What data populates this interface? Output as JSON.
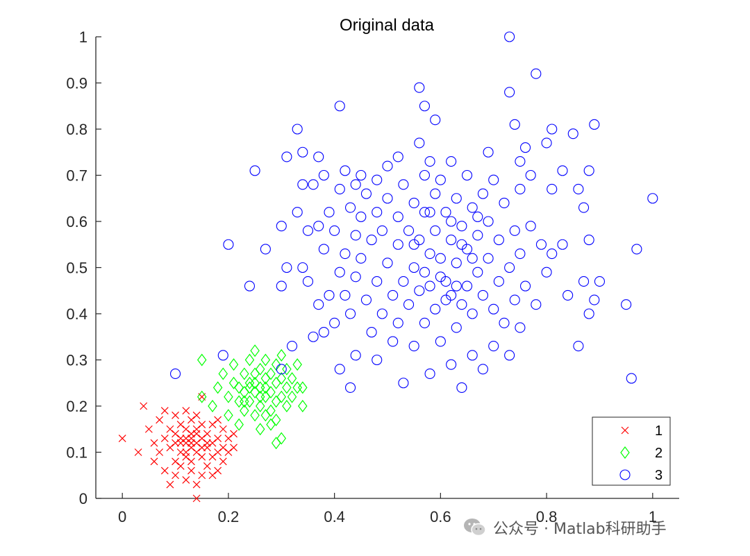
{
  "chart_data": {
    "type": "scatter",
    "title": "Original data",
    "xlim": [
      -0.05,
      1.05
    ],
    "ylim": [
      0,
      1
    ],
    "xticks": [
      0,
      0.2,
      0.4,
      0.6,
      0.8,
      1
    ],
    "xtick_labels": [
      "0",
      "0.2",
      "0.4",
      "0.6",
      "0.8",
      "1"
    ],
    "yticks": [
      0,
      0.1,
      0.2,
      0.3,
      0.4,
      0.5,
      0.6,
      0.7,
      0.8,
      0.9,
      1
    ],
    "ytick_labels": [
      "0",
      "0.1",
      "0.2",
      "0.3",
      "0.4",
      "0.5",
      "0.6",
      "0.7",
      "0.8",
      "0.9",
      "1"
    ],
    "grid": false,
    "legend_position": "bottom-right",
    "series": [
      {
        "name": "1",
        "marker": "x",
        "color": "#ff0000",
        "points": [
          [
            0.0,
            0.13
          ],
          [
            0.03,
            0.1
          ],
          [
            0.04,
            0.2
          ],
          [
            0.05,
            0.15
          ],
          [
            0.06,
            0.12
          ],
          [
            0.06,
            0.08
          ],
          [
            0.07,
            0.17
          ],
          [
            0.07,
            0.1
          ],
          [
            0.08,
            0.19
          ],
          [
            0.08,
            0.13
          ],
          [
            0.08,
            0.06
          ],
          [
            0.09,
            0.15
          ],
          [
            0.09,
            0.11
          ],
          [
            0.09,
            0.03
          ],
          [
            0.1,
            0.18
          ],
          [
            0.1,
            0.12
          ],
          [
            0.1,
            0.08
          ],
          [
            0.1,
            0.05
          ],
          [
            0.11,
            0.16
          ],
          [
            0.11,
            0.13
          ],
          [
            0.11,
            0.1
          ],
          [
            0.11,
            0.07
          ],
          [
            0.12,
            0.19
          ],
          [
            0.12,
            0.15
          ],
          [
            0.12,
            0.12
          ],
          [
            0.12,
            0.09
          ],
          [
            0.12,
            0.04
          ],
          [
            0.13,
            0.17
          ],
          [
            0.13,
            0.14
          ],
          [
            0.13,
            0.11
          ],
          [
            0.13,
            0.08
          ],
          [
            0.13,
            0.06
          ],
          [
            0.14,
            0.18
          ],
          [
            0.14,
            0.15
          ],
          [
            0.14,
            0.12
          ],
          [
            0.14,
            0.1
          ],
          [
            0.14,
            0.0
          ],
          [
            0.15,
            0.22
          ],
          [
            0.15,
            0.16
          ],
          [
            0.15,
            0.13
          ],
          [
            0.15,
            0.09
          ],
          [
            0.15,
            0.05
          ],
          [
            0.16,
            0.14
          ],
          [
            0.16,
            0.11
          ],
          [
            0.16,
            0.07
          ],
          [
            0.17,
            0.16
          ],
          [
            0.17,
            0.12
          ],
          [
            0.17,
            0.09
          ],
          [
            0.18,
            0.17
          ],
          [
            0.18,
            0.13
          ],
          [
            0.18,
            0.1
          ],
          [
            0.18,
            0.06
          ],
          [
            0.19,
            0.15
          ],
          [
            0.19,
            0.11
          ],
          [
            0.19,
            0.08
          ],
          [
            0.2,
            0.13
          ],
          [
            0.2,
            0.1
          ],
          [
            0.21,
            0.11
          ],
          [
            0.21,
            0.14
          ],
          [
            0.17,
            0.05
          ],
          [
            0.14,
            0.03
          ],
          [
            0.1,
            0.14
          ],
          [
            0.12,
            0.1
          ],
          [
            0.13,
            0.12
          ],
          [
            0.11,
            0.12
          ],
          [
            0.15,
            0.11
          ],
          [
            0.16,
            0.12
          ],
          [
            0.13,
            0.13
          ],
          [
            0.12,
            0.13
          ],
          [
            0.14,
            0.14
          ]
        ]
      },
      {
        "name": "2",
        "marker": "diamond",
        "color": "#00ff00",
        "points": [
          [
            0.15,
            0.22
          ],
          [
            0.15,
            0.3
          ],
          [
            0.17,
            0.2
          ],
          [
            0.18,
            0.24
          ],
          [
            0.19,
            0.27
          ],
          [
            0.2,
            0.22
          ],
          [
            0.2,
            0.18
          ],
          [
            0.21,
            0.25
          ],
          [
            0.21,
            0.29
          ],
          [
            0.22,
            0.21
          ],
          [
            0.22,
            0.24
          ],
          [
            0.22,
            0.16
          ],
          [
            0.23,
            0.27
          ],
          [
            0.23,
            0.23
          ],
          [
            0.23,
            0.19
          ],
          [
            0.24,
            0.3
          ],
          [
            0.24,
            0.25
          ],
          [
            0.24,
            0.21
          ],
          [
            0.25,
            0.32
          ],
          [
            0.25,
            0.27
          ],
          [
            0.25,
            0.23
          ],
          [
            0.25,
            0.18
          ],
          [
            0.26,
            0.28
          ],
          [
            0.26,
            0.24
          ],
          [
            0.26,
            0.2
          ],
          [
            0.26,
            0.15
          ],
          [
            0.27,
            0.3
          ],
          [
            0.27,
            0.26
          ],
          [
            0.27,
            0.22
          ],
          [
            0.27,
            0.18
          ],
          [
            0.28,
            0.27
          ],
          [
            0.28,
            0.23
          ],
          [
            0.28,
            0.19
          ],
          [
            0.28,
            0.16
          ],
          [
            0.29,
            0.29
          ],
          [
            0.29,
            0.25
          ],
          [
            0.29,
            0.21
          ],
          [
            0.29,
            0.17
          ],
          [
            0.3,
            0.31
          ],
          [
            0.3,
            0.26
          ],
          [
            0.3,
            0.22
          ],
          [
            0.3,
            0.13
          ],
          [
            0.31,
            0.28
          ],
          [
            0.31,
            0.24
          ],
          [
            0.31,
            0.2
          ],
          [
            0.32,
            0.26
          ],
          [
            0.32,
            0.22
          ],
          [
            0.33,
            0.29
          ],
          [
            0.33,
            0.24
          ],
          [
            0.34,
            0.2
          ],
          [
            0.34,
            0.24
          ],
          [
            0.29,
            0.12
          ],
          [
            0.24,
            0.24
          ],
          [
            0.26,
            0.22
          ],
          [
            0.25,
            0.25
          ],
          [
            0.23,
            0.21
          ],
          [
            0.27,
            0.24
          ]
        ]
      },
      {
        "name": "3",
        "marker": "circle",
        "color": "#0000ff",
        "points": [
          [
            0.1,
            0.27
          ],
          [
            0.19,
            0.31
          ],
          [
            0.2,
            0.55
          ],
          [
            0.24,
            0.46
          ],
          [
            0.25,
            0.71
          ],
          [
            0.27,
            0.54
          ],
          [
            0.3,
            0.59
          ],
          [
            0.3,
            0.46
          ],
          [
            0.3,
            0.28
          ],
          [
            0.31,
            0.74
          ],
          [
            0.31,
            0.5
          ],
          [
            0.32,
            0.33
          ],
          [
            0.33,
            0.8
          ],
          [
            0.33,
            0.62
          ],
          [
            0.34,
            0.75
          ],
          [
            0.34,
            0.68
          ],
          [
            0.34,
            0.5
          ],
          [
            0.35,
            0.58
          ],
          [
            0.35,
            0.47
          ],
          [
            0.36,
            0.68
          ],
          [
            0.36,
            0.35
          ],
          [
            0.37,
            0.74
          ],
          [
            0.37,
            0.59
          ],
          [
            0.37,
            0.42
          ],
          [
            0.38,
            0.7
          ],
          [
            0.38,
            0.54
          ],
          [
            0.38,
            0.36
          ],
          [
            0.39,
            0.62
          ],
          [
            0.39,
            0.44
          ],
          [
            0.4,
            0.58
          ],
          [
            0.4,
            0.38
          ],
          [
            0.41,
            0.85
          ],
          [
            0.41,
            0.67
          ],
          [
            0.41,
            0.49
          ],
          [
            0.41,
            0.28
          ],
          [
            0.42,
            0.71
          ],
          [
            0.42,
            0.53
          ],
          [
            0.42,
            0.44
          ],
          [
            0.43,
            0.63
          ],
          [
            0.43,
            0.4
          ],
          [
            0.43,
            0.24
          ],
          [
            0.44,
            0.68
          ],
          [
            0.44,
            0.57
          ],
          [
            0.44,
            0.48
          ],
          [
            0.44,
            0.31
          ],
          [
            0.45,
            0.7
          ],
          [
            0.45,
            0.61
          ],
          [
            0.45,
            0.52
          ],
          [
            0.46,
            0.66
          ],
          [
            0.46,
            0.43
          ],
          [
            0.47,
            0.56
          ],
          [
            0.47,
            0.36
          ],
          [
            0.48,
            0.69
          ],
          [
            0.48,
            0.62
          ],
          [
            0.48,
            0.47
          ],
          [
            0.48,
            0.3
          ],
          [
            0.49,
            0.58
          ],
          [
            0.49,
            0.4
          ],
          [
            0.5,
            0.72
          ],
          [
            0.5,
            0.65
          ],
          [
            0.5,
            0.51
          ],
          [
            0.51,
            0.44
          ],
          [
            0.51,
            0.34
          ],
          [
            0.52,
            0.74
          ],
          [
            0.52,
            0.61
          ],
          [
            0.52,
            0.55
          ],
          [
            0.52,
            0.38
          ],
          [
            0.53,
            0.68
          ],
          [
            0.53,
            0.47
          ],
          [
            0.53,
            0.25
          ],
          [
            0.54,
            0.58
          ],
          [
            0.54,
            0.42
          ],
          [
            0.55,
            0.64
          ],
          [
            0.55,
            0.5
          ],
          [
            0.55,
            0.33
          ],
          [
            0.56,
            0.89
          ],
          [
            0.56,
            0.77
          ],
          [
            0.56,
            0.56
          ],
          [
            0.56,
            0.45
          ],
          [
            0.57,
            0.85
          ],
          [
            0.57,
            0.7
          ],
          [
            0.57,
            0.62
          ],
          [
            0.57,
            0.38
          ],
          [
            0.58,
            0.73
          ],
          [
            0.58,
            0.53
          ],
          [
            0.58,
            0.46
          ],
          [
            0.58,
            0.27
          ],
          [
            0.59,
            0.82
          ],
          [
            0.59,
            0.66
          ],
          [
            0.59,
            0.58
          ],
          [
            0.59,
            0.41
          ],
          [
            0.6,
            0.69
          ],
          [
            0.6,
            0.52
          ],
          [
            0.6,
            0.34
          ],
          [
            0.61,
            0.62
          ],
          [
            0.61,
            0.47
          ],
          [
            0.62,
            0.73
          ],
          [
            0.62,
            0.56
          ],
          [
            0.62,
            0.44
          ],
          [
            0.62,
            0.29
          ],
          [
            0.63,
            0.65
          ],
          [
            0.63,
            0.51
          ],
          [
            0.63,
            0.37
          ],
          [
            0.64,
            0.59
          ],
          [
            0.64,
            0.42
          ],
          [
            0.64,
            0.24
          ],
          [
            0.65,
            0.7
          ],
          [
            0.65,
            0.54
          ],
          [
            0.65,
            0.46
          ],
          [
            0.66,
            0.63
          ],
          [
            0.66,
            0.4
          ],
          [
            0.66,
            0.31
          ],
          [
            0.67,
            0.57
          ],
          [
            0.67,
            0.49
          ],
          [
            0.68,
            0.66
          ],
          [
            0.68,
            0.44
          ],
          [
            0.68,
            0.28
          ],
          [
            0.69,
            0.75
          ],
          [
            0.69,
            0.6
          ],
          [
            0.69,
            0.52
          ],
          [
            0.7,
            0.69
          ],
          [
            0.7,
            0.41
          ],
          [
            0.7,
            0.33
          ],
          [
            0.71,
            0.56
          ],
          [
            0.71,
            0.47
          ],
          [
            0.72,
            0.64
          ],
          [
            0.72,
            0.38
          ],
          [
            0.73,
            0.88
          ],
          [
            0.73,
            0.5
          ],
          [
            0.73,
            0.31
          ],
          [
            0.73,
            1.0
          ],
          [
            0.74,
            0.81
          ],
          [
            0.74,
            0.58
          ],
          [
            0.74,
            0.43
          ],
          [
            0.75,
            0.73
          ],
          [
            0.75,
            0.67
          ],
          [
            0.75,
            0.53
          ],
          [
            0.75,
            0.37
          ],
          [
            0.76,
            0.76
          ],
          [
            0.76,
            0.46
          ],
          [
            0.77,
            0.7
          ],
          [
            0.77,
            0.59
          ],
          [
            0.78,
            0.92
          ],
          [
            0.78,
            0.42
          ],
          [
            0.79,
            0.55
          ],
          [
            0.8,
            0.77
          ],
          [
            0.8,
            0.49
          ],
          [
            0.81,
            0.8
          ],
          [
            0.81,
            0.67
          ],
          [
            0.81,
            0.53
          ],
          [
            0.83,
            0.71
          ],
          [
            0.83,
            0.55
          ],
          [
            0.84,
            0.44
          ],
          [
            0.85,
            0.79
          ],
          [
            0.86,
            0.67
          ],
          [
            0.86,
            0.33
          ],
          [
            0.87,
            0.63
          ],
          [
            0.87,
            0.47
          ],
          [
            0.88,
            0.71
          ],
          [
            0.88,
            0.56
          ],
          [
            0.88,
            0.4
          ],
          [
            0.89,
            0.81
          ],
          [
            0.89,
            0.43
          ],
          [
            0.9,
            0.47
          ],
          [
            0.95,
            0.42
          ],
          [
            0.96,
            0.26
          ],
          [
            0.97,
            0.54
          ],
          [
            1.0,
            0.65
          ],
          [
            0.62,
            0.6
          ],
          [
            0.6,
            0.48
          ],
          [
            0.64,
            0.55
          ],
          [
            0.58,
            0.62
          ],
          [
            0.66,
            0.52
          ],
          [
            0.61,
            0.43
          ],
          [
            0.55,
            0.55
          ],
          [
            0.67,
            0.61
          ],
          [
            0.57,
            0.49
          ],
          [
            0.63,
            0.46
          ]
        ]
      }
    ]
  },
  "watermark": {
    "text": "公众号 · Matlab科研助手"
  }
}
